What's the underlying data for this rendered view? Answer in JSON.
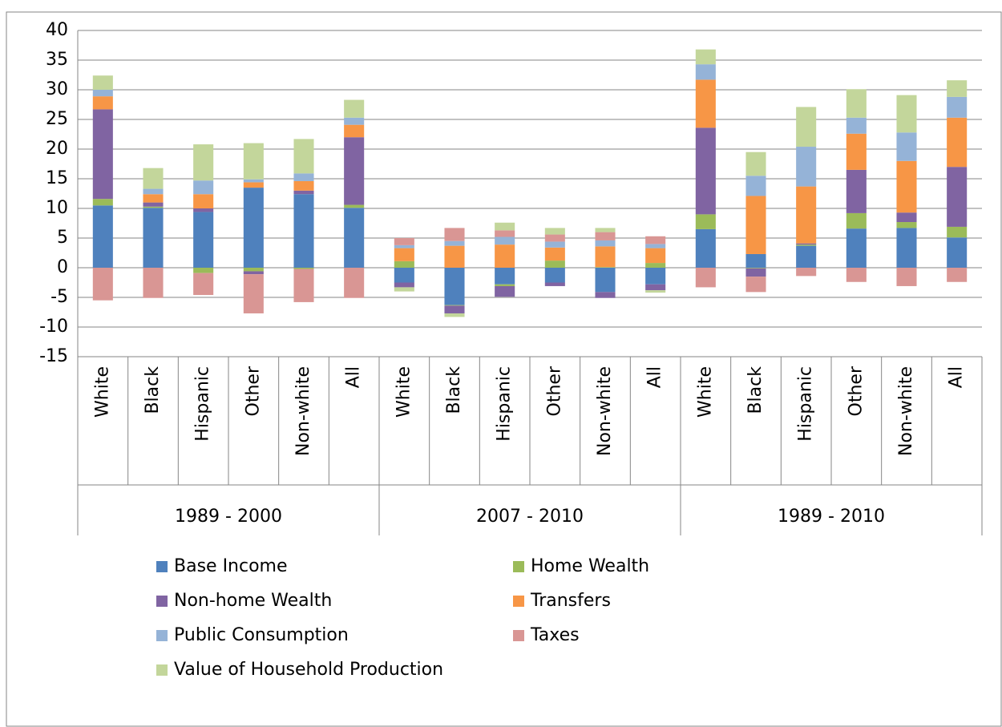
{
  "chart_data": {
    "type": "stacked_bar",
    "categories": [
      "White",
      "Black",
      "Hispanic",
      "Other",
      "Non-white",
      "All",
      "White",
      "Black",
      "Hispanic",
      "Other",
      "Non-white",
      "All",
      "White",
      "Black",
      "Hispanic",
      "Other",
      "Non-white",
      "All"
    ],
    "groups": [
      "1989 - 2000",
      "2007 - 2010",
      "1989 - 2010"
    ],
    "series": [
      {
        "name": "Base Income",
        "color": "#4f81bd",
        "values": [
          10.5,
          10.1,
          9.4,
          13.5,
          12.4,
          10.1,
          -2.5,
          -6.3,
          -2.8,
          -2.5,
          -4.1,
          -2.8,
          6.5,
          2.3,
          3.7,
          6.6,
          6.7,
          5.1
        ]
      },
      {
        "name": "Home Wealth",
        "color": "#9bbb59",
        "values": [
          1.1,
          0.2,
          -0.9,
          -0.6,
          -0.2,
          0.5,
          1.1,
          -0.1,
          -0.3,
          1.2,
          0.1,
          0.8,
          2.5,
          -0.1,
          0.2,
          2.6,
          1.0,
          1.8
        ]
      },
      {
        "name": "Non-home Wealth",
        "color": "#8064a2",
        "values": [
          15.1,
          0.7,
          0.6,
          -0.5,
          0.6,
          11.4,
          -0.8,
          -1.3,
          -1.8,
          -0.6,
          -1.0,
          -1.0,
          14.6,
          -1.4,
          0.2,
          7.3,
          1.6,
          10.1
        ]
      },
      {
        "name": "Transfers",
        "color": "#f79646",
        "values": [
          2.2,
          1.4,
          2.4,
          0.9,
          1.6,
          2.1,
          2.2,
          3.7,
          3.9,
          2.2,
          3.5,
          2.5,
          8.1,
          9.8,
          9.6,
          6.1,
          8.7,
          8.3
        ]
      },
      {
        "name": "Public Consumption",
        "color": "#95b3d7",
        "values": [
          1.1,
          0.9,
          2.3,
          0.5,
          1.3,
          1.2,
          0.5,
          0.8,
          1.3,
          1.0,
          1.0,
          0.7,
          2.6,
          3.4,
          6.7,
          2.7,
          4.8,
          3.5
        ]
      },
      {
        "name": "Taxes",
        "color": "#d99694",
        "values": [
          -5.5,
          -5.1,
          -3.7,
          -6.6,
          -5.6,
          -5.1,
          1.2,
          2.2,
          1.1,
          1.2,
          1.4,
          1.3,
          -3.3,
          -2.6,
          -1.4,
          -2.4,
          -3.1,
          -2.4
        ]
      },
      {
        "name": "Value of Household Production",
        "color": "#c3d69b",
        "values": [
          2.4,
          3.5,
          6.1,
          6.1,
          5.8,
          3.0,
          -0.7,
          -0.6,
          1.3,
          1.1,
          0.7,
          -0.4,
          2.5,
          4.0,
          6.7,
          4.8,
          6.3,
          2.8
        ]
      }
    ],
    "ylim": [
      -15,
      40
    ],
    "yticks": [
      -15,
      -10,
      -5,
      0,
      5,
      10,
      15,
      20,
      25,
      30,
      35,
      40
    ],
    "grid": true,
    "legend": "bottom"
  }
}
